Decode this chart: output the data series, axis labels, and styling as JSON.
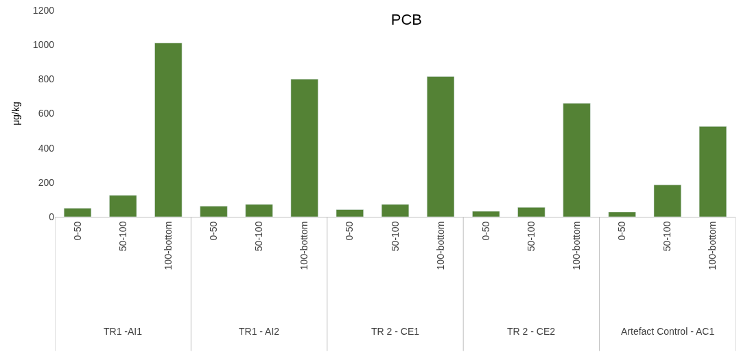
{
  "chart_data": {
    "type": "bar",
    "title": "PCB",
    "ylabel": "μg/kg",
    "categories": [
      "0-50",
      "50-100",
      "100-bottom",
      "0-50",
      "50-100",
      "100-bottom",
      "0-50",
      "50-100",
      "100-bottom",
      "0-50",
      "50-100",
      "100-bottom",
      "0-50",
      "50-100",
      "100-bottom"
    ],
    "values": [
      50,
      125,
      1010,
      62,
      72,
      800,
      42,
      72,
      815,
      32,
      55,
      660,
      28,
      185,
      525
    ],
    "color": "#548235",
    "annotations": [
      "TR1 -AI1",
      "TR1 - AI2",
      "TR 2 - CE1",
      "TR 2 - CE2",
      "Artefact Control - AC1"
    ],
    "ylim": [
      0,
      1200
    ],
    "yticks": [
      0,
      200,
      400,
      600,
      800,
      1000,
      1200
    ]
  }
}
